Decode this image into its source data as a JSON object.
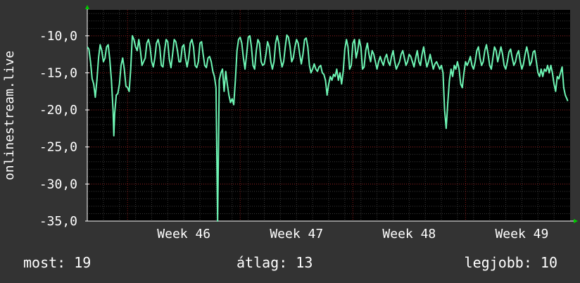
{
  "chart_data": {
    "type": "line",
    "ylabel": "onlinestream.live",
    "y_ticks": [
      {
        "value": -10,
        "label": "-10,0"
      },
      {
        "value": -15,
        "label": "-15,0"
      },
      {
        "value": -20,
        "label": "-20,0"
      },
      {
        "value": -25,
        "label": "-25,0"
      },
      {
        "value": -30,
        "label": "-30,0"
      },
      {
        "value": -35,
        "label": "-35,0"
      }
    ],
    "ylim": [
      -35,
      -6.5
    ],
    "x_range": [
      0,
      30
    ],
    "x_ticks": [
      {
        "value": 6,
        "label": "Week 46"
      },
      {
        "value": 13,
        "label": "Week 47"
      },
      {
        "value": 20,
        "label": "Week 48"
      },
      {
        "value": 27,
        "label": "Week 49"
      }
    ],
    "grid": true,
    "colors": {
      "line": "#6ef5b4",
      "background": "#000000",
      "grid": "#8b1a1a",
      "axis": "#ffffff",
      "arrow": "#00cc00"
    },
    "series": [
      {
        "points": [
          [
            0.0,
            -11.5
          ],
          [
            0.1,
            -11.8
          ],
          [
            0.2,
            -13.5
          ],
          [
            0.3,
            -15.8
          ],
          [
            0.4,
            -16.5
          ],
          [
            0.5,
            -18.3
          ],
          [
            0.6,
            -16.0
          ],
          [
            0.7,
            -13.0
          ],
          [
            0.8,
            -11.2
          ],
          [
            0.9,
            -12.0
          ],
          [
            1.0,
            -13.5
          ],
          [
            1.1,
            -13.0
          ],
          [
            1.2,
            -11.5
          ],
          [
            1.3,
            -11.2
          ],
          [
            1.4,
            -13.2
          ],
          [
            1.5,
            -16.0
          ],
          [
            1.6,
            -20.0
          ],
          [
            1.65,
            -23.5
          ],
          [
            1.7,
            -20.5
          ],
          [
            1.8,
            -18.0
          ],
          [
            1.9,
            -17.8
          ],
          [
            2.0,
            -16.5
          ],
          [
            2.1,
            -14.0
          ],
          [
            2.2,
            -13.0
          ],
          [
            2.3,
            -14.5
          ],
          [
            2.4,
            -16.8
          ],
          [
            2.5,
            -17.0
          ],
          [
            2.6,
            -17.5
          ],
          [
            2.7,
            -14.5
          ],
          [
            2.8,
            -10.0
          ],
          [
            2.9,
            -10.5
          ],
          [
            3.0,
            -11.5
          ],
          [
            3.1,
            -12.0
          ],
          [
            3.2,
            -10.5
          ],
          [
            3.3,
            -12.0
          ],
          [
            3.4,
            -14.0
          ],
          [
            3.5,
            -13.5
          ],
          [
            3.6,
            -13.0
          ],
          [
            3.7,
            -11.0
          ],
          [
            3.8,
            -10.5
          ],
          [
            3.9,
            -11.5
          ],
          [
            4.0,
            -13.5
          ],
          [
            4.1,
            -14.2
          ],
          [
            4.2,
            -13.0
          ],
          [
            4.3,
            -11.0
          ],
          [
            4.4,
            -10.5
          ],
          [
            4.5,
            -11.5
          ],
          [
            4.6,
            -14.0
          ],
          [
            4.7,
            -14.2
          ],
          [
            4.8,
            -12.0
          ],
          [
            4.9,
            -10.5
          ],
          [
            5.0,
            -10.8
          ],
          [
            5.1,
            -13.2
          ],
          [
            5.2,
            -14.3
          ],
          [
            5.3,
            -12.5
          ],
          [
            5.4,
            -10.5
          ],
          [
            5.5,
            -10.8
          ],
          [
            5.6,
            -12.0
          ],
          [
            5.7,
            -13.5
          ],
          [
            5.8,
            -13.5
          ],
          [
            5.9,
            -11.5
          ],
          [
            6.0,
            -11.2
          ],
          [
            6.1,
            -13.0
          ],
          [
            6.2,
            -14.2
          ],
          [
            6.3,
            -13.0
          ],
          [
            6.4,
            -11.0
          ],
          [
            6.5,
            -10.5
          ],
          [
            6.6,
            -11.5
          ],
          [
            6.7,
            -14.0
          ],
          [
            6.8,
            -14.3
          ],
          [
            6.9,
            -13.5
          ],
          [
            7.0,
            -11.0
          ],
          [
            7.1,
            -10.8
          ],
          [
            7.2,
            -12.5
          ],
          [
            7.3,
            -14.0
          ],
          [
            7.4,
            -14.3
          ],
          [
            7.5,
            -13.0
          ],
          [
            7.6,
            -12.8
          ],
          [
            7.7,
            -13.5
          ],
          [
            7.8,
            -14.8
          ],
          [
            7.9,
            -15.5
          ],
          [
            8.0,
            -17.0
          ],
          [
            8.1,
            -35.0
          ],
          [
            8.2,
            -16.0
          ],
          [
            8.3,
            -15.0
          ],
          [
            8.4,
            -14.5
          ],
          [
            8.5,
            -17.5
          ],
          [
            8.6,
            -14.8
          ],
          [
            8.7,
            -16.5
          ],
          [
            8.8,
            -18.0
          ],
          [
            8.9,
            -19.0
          ],
          [
            9.0,
            -18.5
          ],
          [
            9.1,
            -19.3
          ],
          [
            9.2,
            -16.0
          ],
          [
            9.3,
            -12.0
          ],
          [
            9.4,
            -10.5
          ],
          [
            9.5,
            -10.2
          ],
          [
            9.6,
            -11.0
          ],
          [
            9.7,
            -13.0
          ],
          [
            9.8,
            -14.5
          ],
          [
            9.9,
            -12.5
          ],
          [
            10.0,
            -10.2
          ],
          [
            10.1,
            -10.0
          ],
          [
            10.2,
            -11.5
          ],
          [
            10.3,
            -14.0
          ],
          [
            10.4,
            -14.5
          ],
          [
            10.5,
            -12.0
          ],
          [
            10.6,
            -10.5
          ],
          [
            10.7,
            -11.0
          ],
          [
            10.8,
            -13.5
          ],
          [
            10.9,
            -14.0
          ],
          [
            11.0,
            -13.8
          ],
          [
            11.1,
            -12.5
          ],
          [
            11.2,
            -10.8
          ],
          [
            11.3,
            -11.5
          ],
          [
            11.4,
            -13.5
          ],
          [
            11.5,
            -14.5
          ],
          [
            11.6,
            -13.5
          ],
          [
            11.7,
            -11.0
          ],
          [
            11.8,
            -10.0
          ],
          [
            11.9,
            -11.0
          ],
          [
            12.0,
            -13.0
          ],
          [
            12.1,
            -14.2
          ],
          [
            12.2,
            -13.5
          ],
          [
            12.3,
            -11.5
          ],
          [
            12.4,
            -9.9
          ],
          [
            12.5,
            -10.2
          ],
          [
            12.6,
            -11.5
          ],
          [
            12.7,
            -13.5
          ],
          [
            12.8,
            -13.0
          ],
          [
            12.9,
            -11.5
          ],
          [
            13.0,
            -10.5
          ],
          [
            13.1,
            -11.0
          ],
          [
            13.2,
            -12.5
          ],
          [
            13.3,
            -13.8
          ],
          [
            13.4,
            -12.5
          ],
          [
            13.5,
            -10.5
          ],
          [
            13.6,
            -10.3
          ],
          [
            13.7,
            -11.5
          ],
          [
            13.8,
            -14.0
          ],
          [
            13.9,
            -15.0
          ],
          [
            14.0,
            -14.5
          ],
          [
            14.1,
            -13.8
          ],
          [
            14.2,
            -14.5
          ],
          [
            14.3,
            -14.8
          ],
          [
            14.4,
            -14.2
          ],
          [
            14.5,
            -14.0
          ],
          [
            14.6,
            -15.0
          ],
          [
            14.7,
            -15.2
          ],
          [
            14.8,
            -16.0
          ],
          [
            14.9,
            -18.0
          ],
          [
            15.0,
            -16.5
          ],
          [
            15.1,
            -15.5
          ],
          [
            15.2,
            -16.0
          ],
          [
            15.3,
            -15.2
          ],
          [
            15.4,
            -15.5
          ],
          [
            15.5,
            -14.5
          ],
          [
            15.6,
            -16.0
          ],
          [
            15.7,
            -15.0
          ],
          [
            15.8,
            -16.5
          ],
          [
            15.9,
            -14.8
          ],
          [
            16.0,
            -11.8
          ],
          [
            16.1,
            -10.5
          ],
          [
            16.2,
            -11.5
          ],
          [
            16.3,
            -14.5
          ],
          [
            16.4,
            -14.0
          ],
          [
            16.5,
            -11.0
          ],
          [
            16.6,
            -10.5
          ],
          [
            16.7,
            -13.0
          ],
          [
            16.8,
            -12.0
          ],
          [
            16.9,
            -10.5
          ],
          [
            17.0,
            -11.5
          ],
          [
            17.1,
            -14.5
          ],
          [
            17.2,
            -14.2
          ],
          [
            17.3,
            -12.0
          ],
          [
            17.4,
            -11.0
          ],
          [
            17.5,
            -12.5
          ],
          [
            17.6,
            -13.5
          ],
          [
            17.7,
            -12.0
          ],
          [
            17.8,
            -12.5
          ],
          [
            17.9,
            -13.5
          ],
          [
            18.0,
            -14.5
          ],
          [
            18.1,
            -13.5
          ],
          [
            18.2,
            -12.8
          ],
          [
            18.3,
            -13.5
          ],
          [
            18.4,
            -14.0
          ],
          [
            18.5,
            -13.0
          ],
          [
            18.6,
            -12.5
          ],
          [
            18.7,
            -13.5
          ],
          [
            18.8,
            -14.0
          ],
          [
            18.9,
            -12.8
          ],
          [
            19.0,
            -12.0
          ],
          [
            19.1,
            -13.5
          ],
          [
            19.2,
            -14.5
          ],
          [
            19.3,
            -14.0
          ],
          [
            19.4,
            -13.5
          ],
          [
            19.5,
            -12.5
          ],
          [
            19.6,
            -12.0
          ],
          [
            19.7,
            -13.0
          ],
          [
            19.8,
            -14.0
          ],
          [
            19.9,
            -13.5
          ],
          [
            20.0,
            -12.5
          ],
          [
            20.1,
            -12.8
          ],
          [
            20.2,
            -13.5
          ],
          [
            20.3,
            -14.2
          ],
          [
            20.4,
            -13.0
          ],
          [
            20.5,
            -12.0
          ],
          [
            20.6,
            -13.5
          ],
          [
            20.7,
            -14.0
          ],
          [
            20.8,
            -12.5
          ],
          [
            20.9,
            -11.5
          ],
          [
            21.0,
            -13.0
          ],
          [
            21.1,
            -14.2
          ],
          [
            21.2,
            -13.5
          ],
          [
            21.3,
            -12.5
          ],
          [
            21.4,
            -13.5
          ],
          [
            21.5,
            -14.5
          ],
          [
            21.6,
            -13.8
          ],
          [
            21.7,
            -13.5
          ],
          [
            21.8,
            -14.0
          ],
          [
            21.9,
            -14.5
          ],
          [
            22.0,
            -14.0
          ],
          [
            22.1,
            -15.0
          ],
          [
            22.2,
            -20.0
          ],
          [
            22.3,
            -22.5
          ],
          [
            22.4,
            -19.0
          ],
          [
            22.5,
            -16.0
          ],
          [
            22.6,
            -14.5
          ],
          [
            22.7,
            -15.5
          ],
          [
            22.8,
            -14.0
          ],
          [
            22.9,
            -14.5
          ],
          [
            23.0,
            -13.5
          ],
          [
            23.1,
            -14.5
          ],
          [
            23.2,
            -16.5
          ],
          [
            23.3,
            -17.0
          ],
          [
            23.4,
            -15.0
          ],
          [
            23.5,
            -13.5
          ],
          [
            23.6,
            -14.0
          ],
          [
            23.7,
            -13.5
          ],
          [
            23.8,
            -12.8
          ],
          [
            23.9,
            -14.0
          ],
          [
            24.0,
            -14.5
          ],
          [
            24.1,
            -13.5
          ],
          [
            24.2,
            -12.0
          ],
          [
            24.3,
            -11.5
          ],
          [
            24.4,
            -13.0
          ],
          [
            24.5,
            -14.0
          ],
          [
            24.6,
            -13.5
          ],
          [
            24.7,
            -12.0
          ],
          [
            24.8,
            -11.2
          ],
          [
            24.9,
            -12.5
          ],
          [
            25.0,
            -14.0
          ],
          [
            25.1,
            -14.5
          ],
          [
            25.2,
            -13.0
          ],
          [
            25.3,
            -11.5
          ],
          [
            25.4,
            -12.0
          ],
          [
            25.5,
            -13.5
          ],
          [
            25.6,
            -12.5
          ],
          [
            25.7,
            -11.5
          ],
          [
            25.8,
            -12.5
          ],
          [
            25.9,
            -14.0
          ],
          [
            26.0,
            -14.5
          ],
          [
            26.1,
            -13.5
          ],
          [
            26.2,
            -12.2
          ],
          [
            26.3,
            -11.8
          ],
          [
            26.4,
            -13.0
          ],
          [
            26.5,
            -14.0
          ],
          [
            26.6,
            -13.5
          ],
          [
            26.7,
            -12.5
          ],
          [
            26.8,
            -12.0
          ],
          [
            26.9,
            -13.5
          ],
          [
            27.0,
            -14.5
          ],
          [
            27.1,
            -13.8
          ],
          [
            27.2,
            -12.5
          ],
          [
            27.3,
            -11.5
          ],
          [
            27.4,
            -12.5
          ],
          [
            27.5,
            -14.0
          ],
          [
            27.6,
            -13.5
          ],
          [
            27.7,
            -12.2
          ],
          [
            27.8,
            -12.0
          ],
          [
            27.9,
            -13.5
          ],
          [
            28.0,
            -15.0
          ],
          [
            28.1,
            -15.5
          ],
          [
            28.2,
            -14.5
          ],
          [
            28.3,
            -15.5
          ],
          [
            28.4,
            -14.5
          ],
          [
            28.5,
            -14.8
          ],
          [
            28.6,
            -14.0
          ],
          [
            28.7,
            -15.0
          ],
          [
            28.8,
            -14.0
          ],
          [
            28.9,
            -15.0
          ],
          [
            29.0,
            -16.5
          ],
          [
            29.1,
            -17.5
          ],
          [
            29.2,
            -15.5
          ],
          [
            29.3,
            -15.8
          ],
          [
            29.4,
            -15.0
          ],
          [
            29.5,
            -14.2
          ],
          [
            29.6,
            -17.0
          ],
          [
            29.7,
            -18.0
          ],
          [
            29.8,
            -18.5
          ],
          [
            29.85,
            -18.8
          ]
        ]
      }
    ]
  },
  "legend": {
    "current": "most: 19",
    "average": "átlag: 13",
    "best": "legjobb: 10"
  }
}
